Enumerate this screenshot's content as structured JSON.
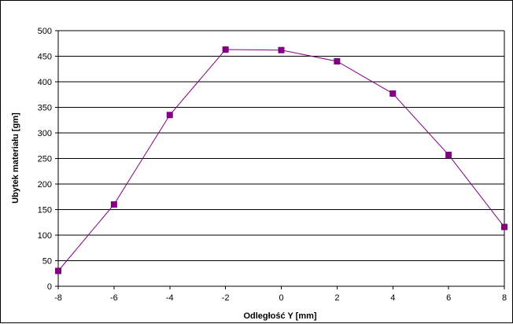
{
  "chart_data": {
    "type": "line",
    "title": "",
    "xlabel": "Odległość Y [mm]",
    "ylabel": "Ubytek materiału [gm]",
    "xlim": [
      -8,
      8
    ],
    "ylim": [
      0,
      500
    ],
    "x_ticks": [
      -8,
      -6,
      -4,
      -2,
      0,
      2,
      4,
      6,
      8
    ],
    "y_ticks": [
      0,
      50,
      100,
      150,
      200,
      250,
      300,
      350,
      400,
      450,
      500
    ],
    "grid": "horizontal",
    "legend": "none",
    "series": [
      {
        "x": [
          -8,
          -6,
          -4,
          -2,
          0,
          2,
          4,
          6,
          8
        ],
        "y": [
          30,
          160,
          335,
          463,
          462,
          440,
          377,
          257,
          116
        ],
        "color": "#800080",
        "marker": "square"
      }
    ]
  }
}
